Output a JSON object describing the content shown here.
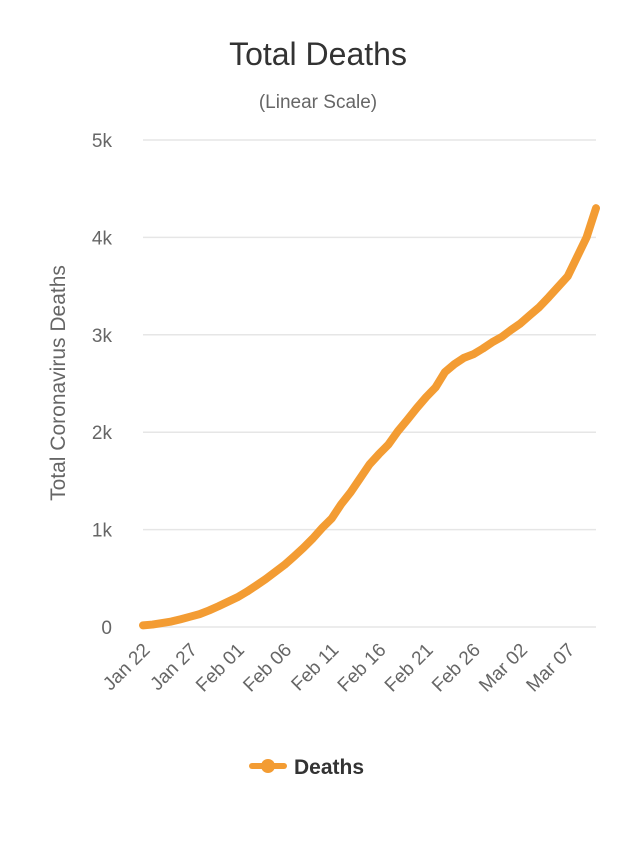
{
  "chart_data": {
    "type": "line",
    "title": "Total Deaths",
    "subtitle": "(Linear Scale)",
    "ylabel": "Total Coronavirus Deaths",
    "xlabel": "",
    "ylim": [
      0,
      5000
    ],
    "y_ticks": [
      0,
      1000,
      2000,
      3000,
      4000,
      5000
    ],
    "y_tick_labels": [
      "0",
      "1k",
      "2k",
      "3k",
      "4k",
      "5k"
    ],
    "x_tick_labels": [
      "Jan 22",
      "Jan 27",
      "Feb 01",
      "Feb 06",
      "Feb 11",
      "Feb 16",
      "Feb 21",
      "Feb 26",
      "Mar 02",
      "Mar 07"
    ],
    "x_tick_step": 5,
    "grid": true,
    "legend_position": "bottom-center",
    "series": [
      {
        "name": "Deaths",
        "color": "#f39c33",
        "x": [
          "Jan 22",
          "Jan 23",
          "Jan 24",
          "Jan 25",
          "Jan 26",
          "Jan 27",
          "Jan 28",
          "Jan 29",
          "Jan 30",
          "Jan 31",
          "Feb 01",
          "Feb 02",
          "Feb 03",
          "Feb 04",
          "Feb 05",
          "Feb 06",
          "Feb 07",
          "Feb 08",
          "Feb 09",
          "Feb 10",
          "Feb 11",
          "Feb 12",
          "Feb 13",
          "Feb 14",
          "Feb 15",
          "Feb 16",
          "Feb 17",
          "Feb 18",
          "Feb 19",
          "Feb 20",
          "Feb 21",
          "Feb 22",
          "Feb 23",
          "Feb 24",
          "Feb 25",
          "Feb 26",
          "Feb 27",
          "Feb 28",
          "Feb 29",
          "Mar 01",
          "Mar 02",
          "Mar 03",
          "Mar 04",
          "Mar 05",
          "Mar 06",
          "Mar 07",
          "Mar 08",
          "Mar 09",
          "Mar 10"
        ],
        "values": [
          17,
          25,
          41,
          56,
          80,
          106,
          132,
          170,
          213,
          259,
          305,
          362,
          426,
          492,
          565,
          638,
          724,
          813,
          910,
          1018,
          1115,
          1261,
          1383,
          1526,
          1669,
          1775,
          1873,
          2009,
          2126,
          2247,
          2360,
          2460,
          2618,
          2699,
          2763,
          2800,
          2858,
          2923,
          2977,
          3050,
          3117,
          3202,
          3285,
          3387,
          3494,
          3600,
          3800,
          4000,
          4300
        ]
      }
    ]
  }
}
